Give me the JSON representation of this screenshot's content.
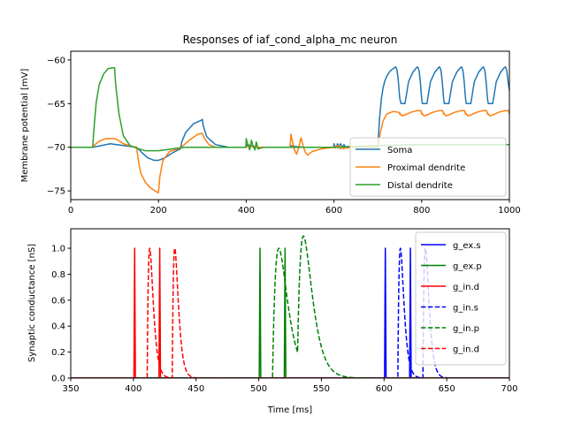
{
  "chart_data": [
    {
      "type": "line",
      "title": "Responses of iaf_cond_alpha_mc neuron",
      "xlabel": "",
      "ylabel": "Membrane potential [mV]",
      "xlim": [
        0,
        1000
      ],
      "ylim": [
        -76,
        -59
      ],
      "xticks": [
        0,
        200,
        400,
        600,
        800,
        1000
      ],
      "yticks": [
        -75,
        -70,
        -65,
        -60
      ],
      "legend": "lower-right",
      "series": [
        {
          "name": "Soma",
          "color": "#1f77b4",
          "x": [
            0,
            50,
            90,
            120,
            150,
            160,
            175,
            190,
            200,
            215,
            230,
            245,
            250,
            253,
            262,
            280,
            298,
            300,
            302,
            310,
            330,
            360,
            395,
            400,
            402,
            410,
            425,
            440,
            460,
            500,
            502,
            510,
            530,
            560,
            599,
            600,
            602,
            605,
            608,
            612,
            615,
            620,
            623,
            626,
            630,
            640,
            660,
            690,
            700,
            702,
            704,
            708,
            712,
            716,
            720,
            726,
            732,
            738,
            741,
            744,
            747,
            749,
            750,
            752,
            753,
            755,
            758,
            762,
            770,
            780,
            788,
            791,
            794,
            797,
            799,
            800,
            801,
            802,
            803,
            805,
            808,
            812,
            820,
            830,
            838,
            841,
            844,
            847,
            849,
            850,
            851,
            852,
            853,
            855,
            858,
            862,
            870,
            880,
            888,
            891,
            894,
            897,
            899,
            900,
            901,
            902,
            903,
            905,
            908,
            912,
            920,
            930,
            938,
            941,
            944,
            947,
            949,
            950,
            951,
            952,
            953,
            955,
            958,
            962,
            970,
            980,
            988,
            991,
            994,
            997,
            1000
          ],
          "y": [
            -70.0,
            -70.0,
            -69.6,
            -69.8,
            -70.0,
            -70.5,
            -71.2,
            -71.5,
            -71.5,
            -71.2,
            -70.7,
            -70.3,
            -70.2,
            -69.4,
            -68.3,
            -67.3,
            -66.9,
            -66.8,
            -67.5,
            -68.8,
            -69.7,
            -70.0,
            -70.0,
            -70.0,
            -69.7,
            -69.8,
            -70.0,
            -70.0,
            -70.0,
            -70.0,
            -69.8,
            -69.9,
            -70.0,
            -70.0,
            -70.0,
            -69.6,
            -69.9,
            -70.0,
            -69.6,
            -69.9,
            -69.6,
            -70.0,
            -69.7,
            -70.0,
            -69.9,
            -70.0,
            -70.0,
            -70.0,
            -70.0,
            -68.3,
            -66.7,
            -64.5,
            -63.2,
            -62.4,
            -61.9,
            -61.4,
            -61.1,
            -60.9,
            -60.8,
            -61.2,
            -62.5,
            -63.8,
            -64.4,
            -64.8,
            -65.0,
            -65.0,
            -65.0,
            -65.0,
            -62.5,
            -61.4,
            -60.9,
            -60.8,
            -61.2,
            -62.5,
            -63.8,
            -64.4,
            -64.8,
            -65.0,
            -65.0,
            -65.0,
            -65.0,
            -65.0,
            -62.5,
            -61.4,
            -60.9,
            -60.8,
            -61.2,
            -62.5,
            -63.8,
            -64.4,
            -64.8,
            -65.0,
            -65.0,
            -65.0,
            -65.0,
            -65.0,
            -62.5,
            -61.4,
            -60.9,
            -60.8,
            -61.2,
            -62.5,
            -63.8,
            -64.4,
            -64.8,
            -65.0,
            -65.0,
            -65.0,
            -65.0,
            -65.0,
            -62.5,
            -61.4,
            -60.9,
            -60.8,
            -61.2,
            -62.5,
            -63.8,
            -64.4,
            -64.8,
            -65.0,
            -65.0,
            -65.0,
            -65.0,
            -65.0,
            -62.5,
            -61.4,
            -60.9,
            -60.8,
            -61.2,
            -62.5,
            -63.5
          ]
        },
        {
          "name": "Proximal dendrite",
          "color": "#ff7f0e",
          "x": [
            0,
            50,
            55,
            65,
            80,
            100,
            105,
            120,
            140,
            150,
            155,
            160,
            170,
            180,
            195,
            200,
            203,
            210,
            225,
            250,
            270,
            290,
            300,
            305,
            315,
            330,
            360,
            400,
            405,
            410,
            420,
            440,
            460,
            500,
            502,
            505,
            510,
            515,
            520,
            525,
            530,
            535,
            540,
            550,
            570,
            599,
            600,
            603,
            606,
            609,
            612,
            615,
            618,
            622,
            626,
            630,
            640,
            660,
            690,
            700,
            705,
            712,
            720,
            735,
            748,
            750,
            751,
            753,
            755,
            762,
            775,
            790,
            798,
            800,
            801,
            803,
            805,
            812,
            825,
            840,
            848,
            850,
            851,
            853,
            855,
            862,
            875,
            890,
            898,
            900,
            901,
            903,
            905,
            912,
            925,
            940,
            948,
            950,
            951,
            953,
            955,
            962,
            975,
            990,
            998,
            1000
          ],
          "y": [
            -70.0,
            -70.0,
            -69.7,
            -69.3,
            -69.0,
            -69.0,
            -69.1,
            -69.6,
            -69.9,
            -70.0,
            -71.8,
            -73.0,
            -74.0,
            -74.6,
            -75.1,
            -75.2,
            -73.4,
            -71.5,
            -70.5,
            -70.1,
            -69.2,
            -68.5,
            -68.4,
            -69.0,
            -69.7,
            -70.0,
            -70.0,
            -70.0,
            -69.8,
            -69.9,
            -70.0,
            -70.0,
            -70.0,
            -70.0,
            -68.5,
            -69.2,
            -70.3,
            -70.8,
            -70.0,
            -68.9,
            -69.9,
            -70.6,
            -70.9,
            -70.5,
            -70.2,
            -70.0,
            -69.9,
            -70.1,
            -69.8,
            -70.1,
            -69.8,
            -70.2,
            -69.9,
            -70.2,
            -70.0,
            -70.1,
            -70.0,
            -70.0,
            -70.0,
            -70.0,
            -68.5,
            -67.0,
            -66.2,
            -65.9,
            -66.0,
            -66.2,
            -66.1,
            -66.3,
            -66.4,
            -66.3,
            -66.0,
            -65.8,
            -65.8,
            -66.2,
            -66.1,
            -66.3,
            -66.4,
            -66.3,
            -66.0,
            -65.8,
            -65.8,
            -66.2,
            -66.1,
            -66.3,
            -66.4,
            -66.3,
            -66.0,
            -65.8,
            -65.8,
            -66.2,
            -66.1,
            -66.3,
            -66.4,
            -66.3,
            -66.0,
            -65.8,
            -65.8,
            -66.2,
            -66.1,
            -66.3,
            -66.4,
            -66.3,
            -66.0,
            -65.8,
            -65.8,
            -66.2
          ]
        },
        {
          "name": "Distal dendrite",
          "color": "#2ca02c",
          "x": [
            0,
            50,
            53,
            58,
            65,
            75,
            85,
            95,
            100,
            102,
            110,
            120,
            135,
            150,
            170,
            200,
            230,
            260,
            290,
            330,
            399,
            400,
            402,
            408,
            412,
            415,
            420,
            423,
            427,
            432,
            440,
            460,
            500,
            600,
            700,
            800,
            900,
            1000
          ],
          "y": [
            -70.0,
            -70.0,
            -67.8,
            -64.9,
            -62.8,
            -61.6,
            -61.0,
            -60.9,
            -60.9,
            -62.6,
            -66.2,
            -68.7,
            -69.8,
            -70.1,
            -70.4,
            -70.4,
            -70.2,
            -70.0,
            -70.0,
            -70.0,
            -70.0,
            -69.0,
            -69.4,
            -70.3,
            -69.2,
            -69.8,
            -70.3,
            -69.4,
            -70.2,
            -70.1,
            -70.0,
            -70.0,
            -70.0,
            -70.0,
            -69.8,
            -69.7,
            -69.7,
            -69.7
          ]
        }
      ]
    },
    {
      "type": "line",
      "title": "",
      "xlabel": "Time [ms]",
      "ylabel": "Synaptic conductance [nS]",
      "xlim": [
        350,
        700
      ],
      "ylim": [
        0.0,
        1.15
      ],
      "xticks": [
        350,
        400,
        450,
        500,
        550,
        600,
        650,
        700
      ],
      "yticks": [
        0.0,
        0.2,
        0.4,
        0.6,
        0.8,
        1.0
      ],
      "legend": "top-right",
      "series": [
        {
          "name": "g_ex.s",
          "color": "#0000ff",
          "dash": "solid",
          "kind": "spikes",
          "times": [
            601,
            621
          ],
          "peak": 1.0
        },
        {
          "name": "g_ex.p",
          "color": "#008000",
          "dash": "solid",
          "kind": "spikes",
          "times": [
            501,
            521
          ],
          "peak": 1.0
        },
        {
          "name": "g_in.d",
          "color": "#ff0000",
          "dash": "solid",
          "kind": "spikes",
          "times": [
            401,
            421
          ],
          "peak": 1.0
        },
        {
          "name": "g_in.s",
          "color": "#0000ff",
          "dash": "dashed",
          "kind": "alpha",
          "onsets": [
            611,
            631
          ],
          "tau": 2.0,
          "peak": 1.0
        },
        {
          "name": "g_in.p",
          "color": "#008000",
          "dash": "dashed",
          "kind": "alpha",
          "onsets": [
            511,
            531
          ],
          "tau": 5.0,
          "peak": 1.0
        },
        {
          "name": "g_in.d",
          "color": "#ff0000",
          "dash": "dashed",
          "kind": "alpha",
          "onsets": [
            411,
            431
          ],
          "tau": 2.0,
          "peak": 1.0
        }
      ]
    }
  ]
}
